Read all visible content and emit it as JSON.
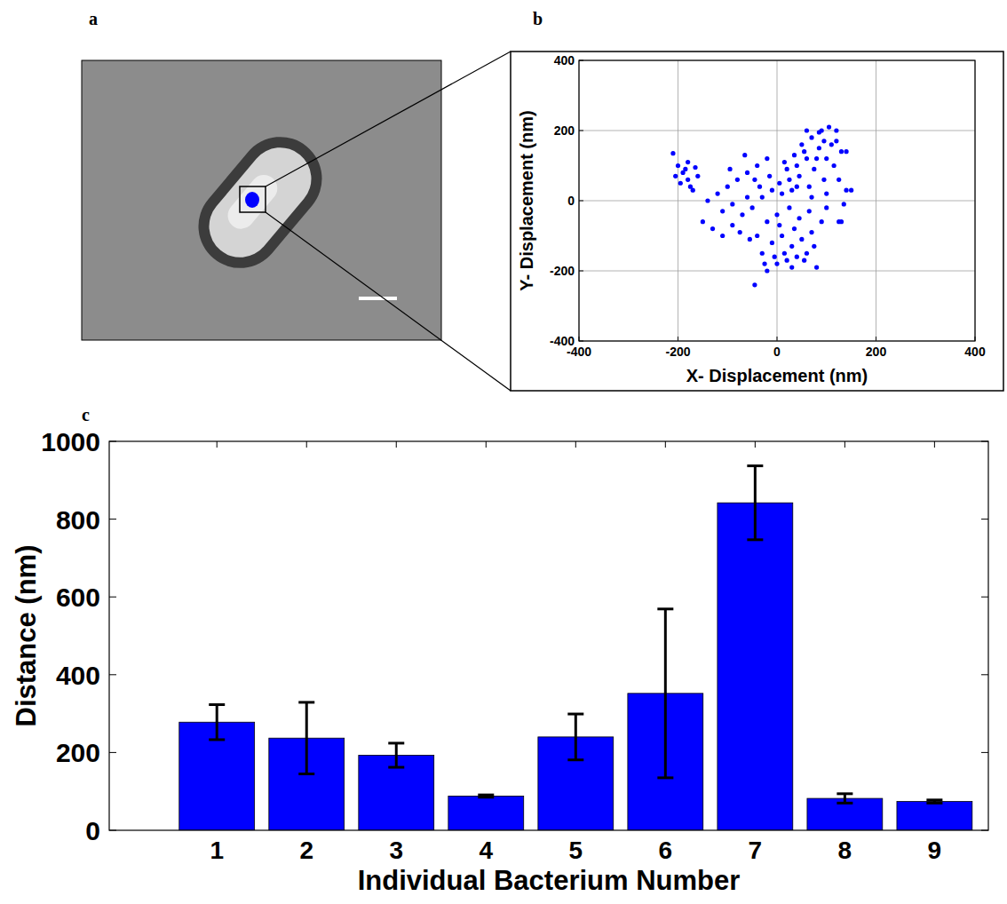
{
  "chart_data": [
    {
      "type": "image",
      "panel": "a"
    },
    {
      "type": "scatter",
      "panel": "b",
      "x_label": "X- Displacement (nm)",
      "y_label": "Y- Displacement (nm)",
      "x": [
        10,
        25,
        40,
        55,
        70,
        90,
        105,
        120,
        130,
        85,
        60,
        100,
        115,
        75,
        45,
        30,
        65,
        95,
        140,
        125,
        110,
        80,
        50,
        35,
        20,
        5,
        15,
        70,
        100,
        130,
        85,
        60,
        120,
        95,
        40,
        -45,
        -20,
        0,
        20,
        40,
        60,
        80,
        -30,
        -10,
        10,
        30,
        50,
        70,
        90,
        -40,
        -20,
        0,
        25,
        45,
        65,
        15,
        35,
        55,
        75,
        -5,
        -25,
        5,
        30,
        -150,
        -130,
        -110,
        -90,
        -70,
        -50,
        -30,
        -10,
        -120,
        -100,
        -80,
        -60,
        -40,
        -20,
        -140,
        -90,
        -60,
        -35,
        -75,
        -55,
        -45,
        -110,
        -65,
        -15,
        -95,
        -210,
        -200,
        -190,
        -180,
        -175,
        -195,
        -185,
        -165,
        -160,
        -205,
        -170,
        -180,
        140,
        150,
        135,
        100,
        125
      ],
      "values": [
        20,
        60,
        100,
        140,
        180,
        200,
        210,
        170,
        140,
        150,
        120,
        120,
        100,
        90,
        70,
        30,
        40,
        60,
        30,
        60,
        160,
        120,
        160,
        130,
        90,
        50,
        110,
        10,
        20,
        -60,
        195,
        200,
        200,
        170,
        40,
        -240,
        -200,
        -180,
        -170,
        -160,
        -150,
        -190,
        -150,
        -120,
        -100,
        -130,
        -110,
        -90,
        -60,
        -100,
        -60,
        -40,
        -20,
        -50,
        -30,
        -150,
        -80,
        -170,
        -130,
        -160,
        -180,
        -70,
        -190,
        -60,
        -80,
        -100,
        -70,
        -40,
        -20,
        10,
        30,
        20,
        40,
        60,
        80,
        100,
        120,
        0,
        -10,
        10,
        40,
        -90,
        -110,
        60,
        -30,
        130,
        70,
        90,
        135,
        100,
        80,
        60,
        40,
        50,
        90,
        95,
        70,
        70,
        30,
        110,
        140,
        30,
        -10,
        -20,
        -60
      ],
      "color": "#0000ff",
      "marker": "circle",
      "xlim": [
        -400,
        400
      ],
      "xticks": [
        -400,
        -200,
        0,
        200,
        400
      ],
      "ylim": [
        -400,
        400
      ],
      "yticks": [
        -400,
        -200,
        0,
        200,
        400
      ],
      "grid": true
    },
    {
      "type": "bar",
      "panel": "c",
      "x_label": "Individual Bacterium Number",
      "y_label": "Distance (nm)",
      "categories": [
        "1",
        "2",
        "3",
        "4",
        "5",
        "6",
        "7",
        "8",
        "9"
      ],
      "values": [
        278,
        237,
        193,
        88,
        240,
        352,
        842,
        82,
        74
      ],
      "errors": [
        45,
        92,
        31,
        3,
        59,
        217,
        95,
        12,
        4
      ],
      "color": "#0000ff",
      "ylim": [
        0,
        1000
      ],
      "yticks": [
        0,
        200,
        400,
        600,
        800,
        1000
      ],
      "grid": false
    }
  ]
}
